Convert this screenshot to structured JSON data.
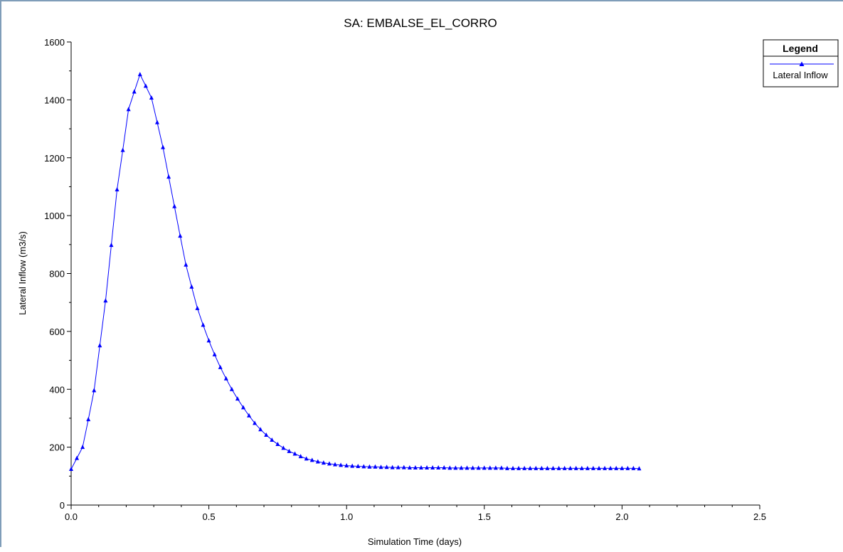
{
  "chart_data": {
    "type": "line",
    "title": "SA: EMBALSE_EL_CORRO",
    "xlabel": "Simulation Time (days)",
    "ylabel": "Lateral Inflow  (m3/s)",
    "xlim": [
      0,
      2.5
    ],
    "ylim": [
      0,
      1600
    ],
    "x_ticks": [
      0.0,
      0.5,
      1.0,
      1.5,
      2.0,
      2.5
    ],
    "x_tick_labels": [
      "0.0",
      "0.5",
      "1.0",
      "1.5",
      "2.0",
      "2.5"
    ],
    "y_ticks": [
      0,
      200,
      400,
      600,
      800,
      1000,
      1200,
      1400,
      1600
    ],
    "y_tick_labels": [
      "0",
      "200",
      "400",
      "600",
      "800",
      "1000",
      "1200",
      "1400",
      "1600"
    ],
    "grid": false,
    "legend_position": "top-right",
    "legend_title": "Legend",
    "series": [
      {
        "name": "Lateral Inflow",
        "color": "#0000ff",
        "marker": "triangle",
        "x_start": 0,
        "x_step": 0.02083,
        "values": [
          124,
          162,
          200,
          296,
          396,
          551,
          706,
          898,
          1090,
          1226,
          1367,
          1428,
          1488,
          1448,
          1407,
          1322,
          1236,
          1134,
          1032,
          930,
          830,
          754,
          680,
          622,
          568,
          520,
          476,
          437,
          400,
          367,
          337,
          309,
          283,
          261,
          242,
          225,
          210,
          197,
          186,
          177,
          168,
          160,
          155,
          150,
          146,
          143,
          140,
          138,
          136,
          135,
          134,
          133,
          132,
          132,
          131,
          131,
          130,
          130,
          130,
          129,
          129,
          129,
          129,
          129,
          129,
          129,
          128,
          128,
          128,
          128,
          128,
          128,
          128,
          128,
          128,
          128,
          127,
          127,
          127,
          127,
          127,
          127,
          127,
          127,
          127,
          127,
          127,
          127,
          127,
          127,
          127,
          127,
          127,
          127,
          127,
          127,
          127,
          127,
          127,
          126
        ]
      }
    ]
  }
}
